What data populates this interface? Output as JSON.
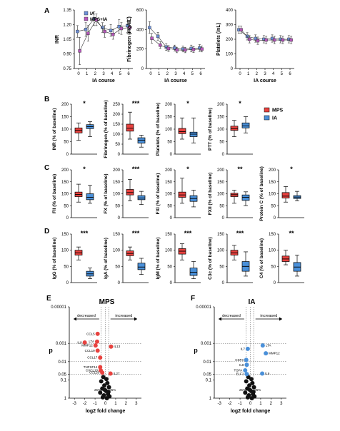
{
  "panel_letters": [
    "A",
    "B",
    "C",
    "D",
    "E",
    "F"
  ],
  "colors": {
    "mps": "#e8423f",
    "ia": "#4a90d9",
    "ia_line_sq": "#6d8fd6",
    "mpsia_line_sq": "#b455b8",
    "volcano_black": "#111111"
  },
  "chart_data": [
    {
      "id": "A-INR",
      "type": "line",
      "panel": "A",
      "xlabel": "IA course",
      "ylabel": "INR",
      "ylim": [
        0.75,
        1.35
      ],
      "yticks": [
        "0.75",
        "0.90",
        "1.05",
        "1.20",
        "1.35"
      ],
      "x": [
        0,
        1,
        2,
        3,
        4,
        5,
        6
      ],
      "legend": [
        "IA",
        "MPS+IA"
      ],
      "series": [
        {
          "name": "IA",
          "values": [
            1.13,
            1.15,
            1.26,
            1.17,
            1.14,
            1.18,
            1.19
          ],
          "err": [
            0.06,
            0.07,
            0.07,
            0.05,
            0.06,
            0.07,
            0.07
          ]
        },
        {
          "name": "MPS+IA",
          "values": [
            0.93,
            1.11,
            1.25,
            1.13,
            1.1,
            1.16,
            1.17
          ],
          "err": [
            0.14,
            0.08,
            0.06,
            0.06,
            0.05,
            0.06,
            0.06
          ]
        }
      ]
    },
    {
      "id": "A-FIB",
      "type": "line",
      "panel": "A",
      "xlabel": "IA course",
      "ylabel": "Fibrinogen  (mg/dL)",
      "ylim": [
        0,
        600
      ],
      "yticks": [
        "0",
        "200",
        "400",
        "600"
      ],
      "x": [
        0,
        1,
        2,
        3,
        4,
        5,
        6
      ],
      "series": [
        {
          "name": "IA",
          "values": [
            420,
            330,
            220,
            210,
            200,
            205,
            210
          ],
          "err": [
            60,
            40,
            35,
            30,
            30,
            35,
            35
          ]
        },
        {
          "name": "MPS+IA",
          "values": [
            310,
            240,
            205,
            190,
            190,
            195,
            200
          ],
          "err": [
            50,
            35,
            30,
            28,
            28,
            30,
            30
          ]
        }
      ]
    },
    {
      "id": "A-PLT",
      "type": "line",
      "panel": "A",
      "xlabel": "IA course",
      "ylabel": "Platelets (/nL)",
      "ylim": [
        0,
        400
      ],
      "yticks": [
        "0",
        "100",
        "200",
        "300",
        "400"
      ],
      "x": [
        0,
        1,
        2,
        3,
        4,
        5,
        6
      ],
      "series": [
        {
          "name": "IA",
          "values": [
            265,
            220,
            205,
            200,
            205,
            200,
            200
          ],
          "err": [
            25,
            25,
            25,
            25,
            25,
            25,
            25
          ]
        },
        {
          "name": "MPS+IA",
          "values": [
            265,
            200,
            190,
            195,
            195,
            195,
            195
          ],
          "err": [
            25,
            25,
            25,
            25,
            25,
            25,
            25
          ]
        }
      ]
    },
    {
      "id": "B",
      "type": "box",
      "panel": "B",
      "ylim": [
        0,
        200
      ],
      "legend": [
        "MPS",
        "IA"
      ],
      "plots": [
        {
          "ylabel": "INR (% of baseline)",
          "yticks": [
            "0",
            "50",
            "100",
            "150",
            "200"
          ],
          "sig": "*",
          "boxes": [
            [
              55,
              85,
              95,
              105,
              125
            ],
            [
              70,
              102,
              110,
              118,
              130
            ]
          ]
        },
        {
          "ylabel": "Fibrinogen (% of baseline)",
          "yticks": [
            "0",
            "50",
            "100",
            "150",
            "200",
            "250"
          ],
          "ylim": [
            0,
            250
          ],
          "sig": "***",
          "boxes": [
            [
              75,
              115,
              130,
              150,
              210
            ],
            [
              35,
              55,
              70,
              82,
              95
            ]
          ]
        },
        {
          "ylabel": "Platelets (% of baseline)",
          "yticks": [
            "0",
            "50",
            "100",
            "150",
            "200"
          ],
          "sig": "*",
          "boxes": [
            [
              60,
              82,
              90,
              103,
              145
            ],
            [
              45,
              70,
              80,
              88,
              145
            ]
          ]
        },
        {
          "ylabel": "PTT (% of baseline)",
          "yticks": [
            "0",
            "50",
            "100",
            "150",
            "200"
          ],
          "sig": "*",
          "boxes": [
            [
              70,
              95,
              102,
              112,
              135
            ],
            [
              85,
              105,
              113,
              125,
              150
            ]
          ]
        }
      ]
    },
    {
      "id": "C",
      "type": "box",
      "panel": "C",
      "ylim": [
        0,
        200
      ],
      "plots": [
        {
          "ylabel": "FII (% of baseline)",
          "yticks": [
            "0",
            "50",
            "100",
            "150",
            "200"
          ],
          "sig": "*",
          "boxes": [
            [
              65,
              88,
              97,
              107,
              140
            ],
            [
              60,
              75,
              85,
              100,
              135
            ]
          ]
        },
        {
          "ylabel": "FX (% of baseline)",
          "yticks": [
            "0",
            "50",
            "100",
            "150",
            "200"
          ],
          "sig": "***",
          "boxes": [
            [
              70,
              95,
              105,
              118,
              160
            ],
            [
              55,
              75,
              82,
              92,
              110
            ]
          ]
        },
        {
          "ylabel": "FXI (% of baseline)",
          "yticks": [
            "0",
            "50",
            "100",
            "150",
            "200"
          ],
          "sig": "*",
          "boxes": [
            [
              60,
              85,
              95,
              107,
              165
            ],
            [
              45,
              68,
              80,
              92,
              115
            ]
          ]
        },
        {
          "ylabel": "FXII (% of baseline)",
          "yticks": [
            "0",
            "50",
            "100",
            "150",
            "200"
          ],
          "sig": "**",
          "boxes": [
            [
              60,
              88,
              96,
              102,
              115
            ],
            [
              50,
              72,
              85,
              95,
              108
            ]
          ]
        },
        {
          "ylabel": "Protein C (% of baseline)",
          "yticks": [
            "0",
            "50",
            "100",
            "150",
            "200"
          ],
          "sig": "*",
          "boxes": [
            [
              65,
              82,
              90,
              105,
              130
            ],
            [
              70,
              80,
              86,
              92,
              110
            ]
          ]
        }
      ]
    },
    {
      "id": "D",
      "type": "box",
      "panel": "D",
      "ylim": [
        0,
        150
      ],
      "plots": [
        {
          "ylabel": "IgG (% of baseline)",
          "yticks": [
            "0",
            "50",
            "100",
            "150"
          ],
          "sig": "***",
          "boxes": [
            [
              70,
              85,
              92,
              100,
              110
            ],
            [
              12,
              20,
              27,
              35,
              45
            ]
          ]
        },
        {
          "ylabel": "IgA (% of baseline)",
          "yticks": [
            "0",
            "50",
            "100",
            "150"
          ],
          "sig": "***",
          "boxes": [
            [
              70,
              83,
              90,
              98,
              110
            ],
            [
              25,
              40,
              48,
              60,
              75
            ]
          ]
        },
        {
          "ylabel": "IgM (% of baseline)",
          "yticks": [
            "0",
            "50",
            "100",
            "150"
          ],
          "sig": "***",
          "boxes": [
            [
              70,
              88,
              97,
              105,
              120
            ],
            [
              12,
              22,
              32,
              45,
              65
            ]
          ]
        },
        {
          "ylabel": "C3c (% of baseline)",
          "yticks": [
            "0",
            "50",
            "100",
            "150"
          ],
          "sig": "***",
          "boxes": [
            [
              70,
              85,
              92,
              100,
              115
            ],
            [
              20,
              35,
              50,
              65,
              95
            ]
          ]
        },
        {
          "ylabel": "C4 (% of baseline)",
          "yticks": [
            "0",
            "50",
            "100",
            "150"
          ],
          "sig": "**",
          "boxes": [
            [
              55,
              65,
              73,
              82,
              100
            ],
            [
              20,
              35,
              48,
              62,
              85
            ]
          ]
        }
      ]
    },
    {
      "id": "E",
      "type": "scatter",
      "panel": "E",
      "title": "MPS",
      "xlabel": "log2 fold change",
      "ylabel": "p",
      "xlim": [
        -3.5,
        3.5
      ],
      "xticks": [
        "-3",
        "-2",
        "-1",
        "0",
        "1",
        "2",
        "3"
      ],
      "yticks": [
        "0.00001",
        "0.001",
        "0.01",
        "0.05",
        "0.1",
        "1"
      ],
      "arrows": [
        "decreased",
        "increased"
      ],
      "pct_labels": [
        "25%",
        "25%"
      ],
      "highlighted": [
        {
          "label": "CCL5",
          "x": -0.75,
          "p": 0.0003
        },
        {
          "label": "IL9",
          "x": -2.0,
          "p": 0.0009
        },
        {
          "label": "LTA",
          "x": -0.8,
          "p": 0.0008
        },
        {
          "label": "MMP12",
          "x": -0.95,
          "p": 0.0013
        },
        {
          "label": "CCL19",
          "x": -0.75,
          "p": 0.0025
        },
        {
          "label": "CCL17",
          "x": -0.5,
          "p": 0.006
        },
        {
          "label": "IL13",
          "x": 0.55,
          "p": 0.0015
        },
        {
          "label": "TNFSF14",
          "x": -0.5,
          "p": 0.02
        },
        {
          "label": "CXCL10",
          "x": -0.45,
          "p": 0.03
        },
        {
          "label": "CCL20",
          "x": -0.3,
          "p": 0.04
        },
        {
          "label": "IL27",
          "x": 0.5,
          "p": 0.045
        }
      ],
      "background": [
        [
          -0.2,
          0.07
        ],
        [
          0.1,
          0.09
        ],
        [
          -0.4,
          0.12
        ],
        [
          0.2,
          0.15
        ],
        [
          -0.1,
          0.2
        ],
        [
          0.35,
          0.25
        ],
        [
          -0.3,
          0.3
        ],
        [
          0.05,
          0.4
        ],
        [
          -0.5,
          0.5
        ],
        [
          0.25,
          0.6
        ],
        [
          -0.15,
          0.7
        ],
        [
          0.4,
          0.8
        ],
        [
          -0.25,
          0.9
        ],
        [
          0.15,
          1
        ],
        [
          -0.05,
          0.35
        ],
        [
          0.3,
          0.45
        ]
      ]
    },
    {
      "id": "F",
      "type": "scatter",
      "panel": "F",
      "title": "IA",
      "xlabel": "log2 fold change",
      "ylabel": "p",
      "xlim": [
        -3.5,
        3.5
      ],
      "xticks": [
        "-3",
        "-2",
        "-1",
        "0",
        "1",
        "2",
        "3"
      ],
      "yticks": [
        "0.00001",
        "0.001",
        "0.01",
        "0.05",
        "0.1",
        "1"
      ],
      "arrows": [
        "decreased",
        "increased"
      ],
      "pct_labels": [
        "25%",
        "25%"
      ],
      "highlighted": [
        {
          "label": "LTA",
          "x": 1.2,
          "p": 0.0013
        },
        {
          "label": "IL7",
          "x": -0.25,
          "p": 0.002
        },
        {
          "label": "MMP12",
          "x": 1.5,
          "p": 0.0035
        },
        {
          "label": "CSF3",
          "x": -0.4,
          "p": 0.008
        },
        {
          "label": "IL8",
          "x": -0.35,
          "p": 0.015
        },
        {
          "label": "TGFA",
          "x": -0.5,
          "p": 0.03
        },
        {
          "label": "ELF1",
          "x": -0.35,
          "p": 0.048
        },
        {
          "label": "IL6",
          "x": 1.15,
          "p": 0.045
        }
      ],
      "background": [
        [
          -0.2,
          0.07
        ],
        [
          0.1,
          0.09
        ],
        [
          -0.4,
          0.12
        ],
        [
          0.2,
          0.15
        ],
        [
          -0.1,
          0.2
        ],
        [
          0.35,
          0.25
        ],
        [
          -0.3,
          0.3
        ],
        [
          0.05,
          0.4
        ],
        [
          -0.5,
          0.5
        ],
        [
          0.25,
          0.6
        ],
        [
          -0.15,
          0.7
        ],
        [
          0.4,
          0.8
        ],
        [
          -0.25,
          0.9
        ],
        [
          0.15,
          1
        ],
        [
          -0.05,
          0.35
        ],
        [
          0.3,
          0.45
        ]
      ]
    }
  ]
}
